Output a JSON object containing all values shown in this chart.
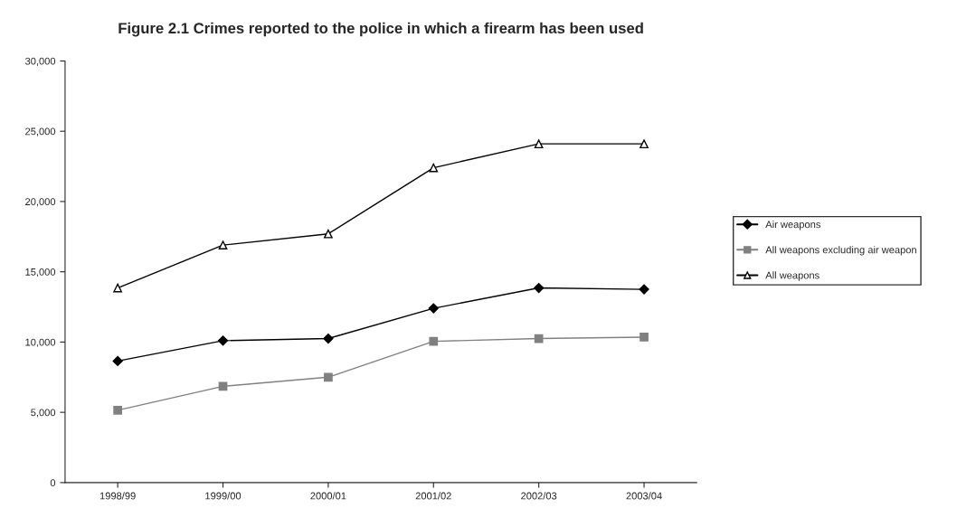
{
  "chart_data": {
    "type": "line",
    "title": "Figure 2.1 Crimes reported to the police in which a firearm has been used",
    "categories": [
      "1998/99",
      "1999/00",
      "2000/01",
      "2001/02",
      "2002/03",
      "2003/04"
    ],
    "series": [
      {
        "name": "Air weapons",
        "color": "#000000",
        "marker": "diamond",
        "values": [
          8650,
          10100,
          10250,
          12400,
          13850,
          13750
        ]
      },
      {
        "name": "All weapons excluding air weapon",
        "color": "#808080",
        "marker": "square",
        "values": [
          5150,
          6850,
          7500,
          10050,
          10250,
          10350
        ]
      },
      {
        "name": "All weapons",
        "color": "#000000",
        "marker": "triangle",
        "values": [
          13850,
          16900,
          17700,
          22400,
          24100,
          24100
        ]
      }
    ],
    "ylim": [
      0,
      30000
    ],
    "yticks": [
      {
        "value": 0,
        "label": "0"
      },
      {
        "value": 5000,
        "label": "5,000"
      },
      {
        "value": 10000,
        "label": "10,000"
      },
      {
        "value": 15000,
        "label": "15,000"
      },
      {
        "value": 20000,
        "label": "20,000"
      },
      {
        "value": 25000,
        "label": "25,000"
      },
      {
        "value": 30000,
        "label": "30,000"
      }
    ],
    "grid": false,
    "legend": "right",
    "line_style": "solid"
  }
}
